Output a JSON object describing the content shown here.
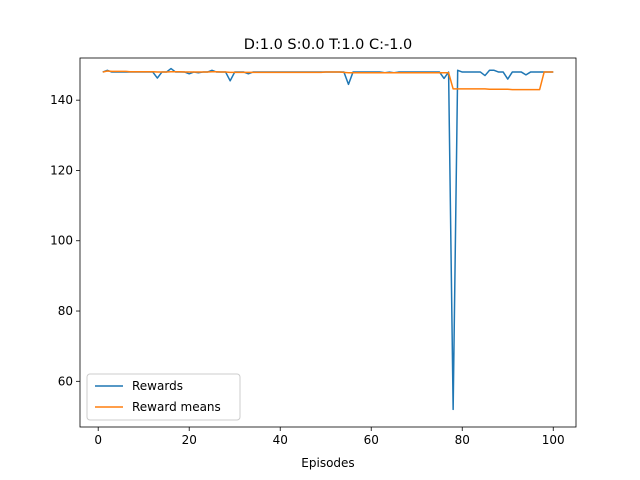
{
  "chart_data": {
    "type": "line",
    "title": "D:1.0 S:0.0 T:1.0 C:-1.0",
    "xlabel": "Episodes",
    "ylabel": "",
    "xlim": [
      -4,
      105
    ],
    "ylim": [
      47,
      152
    ],
    "xticks": [
      0,
      20,
      40,
      60,
      80,
      100
    ],
    "yticks": [
      60,
      80,
      100,
      120,
      140
    ],
    "grid": false,
    "legend_position": "lower-left",
    "series": [
      {
        "name": "Rewards",
        "color": "#1f77b4",
        "x": [
          1,
          2,
          3,
          4,
          5,
          6,
          7,
          8,
          9,
          10,
          11,
          12,
          13,
          14,
          15,
          16,
          17,
          18,
          19,
          20,
          21,
          22,
          23,
          24,
          25,
          26,
          27,
          28,
          29,
          30,
          31,
          32,
          33,
          34,
          35,
          36,
          37,
          38,
          39,
          40,
          41,
          42,
          43,
          44,
          45,
          46,
          47,
          48,
          49,
          50,
          51,
          52,
          53,
          54,
          55,
          56,
          57,
          58,
          59,
          60,
          61,
          62,
          63,
          64,
          65,
          66,
          67,
          68,
          69,
          70,
          71,
          72,
          73,
          74,
          75,
          76,
          77,
          78,
          79,
          80,
          81,
          82,
          83,
          84,
          85,
          86,
          87,
          88,
          89,
          90,
          91,
          92,
          93,
          94,
          95,
          96,
          97,
          98,
          99,
          100
        ],
        "y": [
          148,
          148.5,
          148,
          148,
          148,
          148,
          148,
          148,
          148,
          148,
          148,
          148,
          146.3,
          148,
          148,
          149,
          148,
          148,
          148,
          147.5,
          148,
          147.8,
          148,
          148,
          148.5,
          148,
          148,
          148,
          145.5,
          148,
          148,
          148,
          147.5,
          148,
          148,
          148,
          148,
          148,
          148,
          148,
          148,
          148,
          148,
          148,
          148,
          148,
          148,
          148,
          148,
          148,
          148,
          148,
          148,
          148,
          144.5,
          148,
          148,
          148,
          148,
          148,
          148,
          148,
          147.8,
          148,
          147.8,
          148,
          148,
          148,
          148,
          148,
          148,
          148,
          148,
          148,
          148,
          146.2,
          148,
          52,
          148.5,
          148,
          148,
          148,
          148,
          148,
          147,
          148.5,
          148.5,
          148,
          148,
          146,
          148,
          148,
          148,
          147.2,
          148,
          148,
          148,
          148,
          148,
          148
        ]
      },
      {
        "name": "Reward means",
        "color": "#ff7f0e",
        "x": [
          1,
          2,
          3,
          4,
          5,
          6,
          7,
          8,
          9,
          10,
          11,
          12,
          13,
          14,
          15,
          16,
          17,
          18,
          19,
          20,
          21,
          22,
          23,
          24,
          25,
          26,
          27,
          28,
          29,
          30,
          31,
          32,
          33,
          34,
          35,
          36,
          37,
          38,
          39,
          40,
          41,
          42,
          43,
          44,
          45,
          46,
          47,
          48,
          49,
          50,
          51,
          52,
          53,
          54,
          55,
          56,
          57,
          58,
          59,
          60,
          61,
          62,
          63,
          64,
          65,
          66,
          67,
          68,
          69,
          70,
          71,
          72,
          73,
          74,
          75,
          76,
          77,
          78,
          79,
          80,
          81,
          82,
          83,
          84,
          85,
          86,
          87,
          88,
          89,
          90,
          91,
          92,
          93,
          94,
          95,
          96,
          97,
          98,
          99,
          100
        ],
        "y": [
          148,
          148.3,
          148.2,
          148.2,
          148.2,
          148.2,
          148.1,
          148.1,
          148.1,
          148.1,
          148.1,
          148.1,
          148,
          148,
          148,
          148.1,
          148.1,
          148.1,
          148,
          148,
          148,
          148,
          148,
          148,
          148.1,
          148.1,
          148,
          148,
          147.9,
          147.9,
          147.9,
          147.9,
          147.9,
          147.9,
          147.9,
          147.9,
          147.9,
          147.9,
          147.9,
          147.9,
          147.9,
          147.9,
          147.9,
          147.9,
          147.9,
          147.9,
          147.9,
          147.9,
          147.9,
          148,
          148,
          148,
          148,
          147.9,
          147.8,
          147.8,
          147.8,
          147.8,
          147.8,
          147.8,
          147.8,
          147.8,
          147.8,
          147.8,
          147.8,
          147.8,
          147.8,
          147.8,
          147.8,
          147.8,
          147.8,
          147.8,
          147.8,
          147.8,
          147.8,
          147.8,
          147.8,
          143.2,
          143.2,
          143.2,
          143.2,
          143.2,
          143.2,
          143.2,
          143.2,
          143.1,
          143.1,
          143.1,
          143.1,
          143.1,
          143,
          143,
          143,
          143,
          143,
          143,
          143,
          148,
          148,
          148
        ]
      }
    ]
  }
}
